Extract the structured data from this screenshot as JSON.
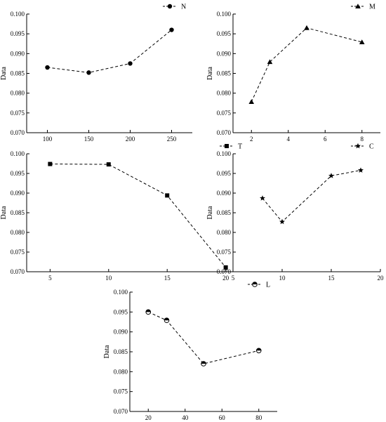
{
  "chart_data": [
    {
      "type": "line",
      "ylabel": "Data",
      "x": [
        100,
        150,
        200,
        250
      ],
      "series": [
        {
          "name": "N",
          "marker": "circle",
          "values": [
            0.0865,
            0.0852,
            0.0875,
            0.096
          ]
        }
      ],
      "xlim": [
        75,
        275
      ],
      "xticks": [
        100,
        150,
        200,
        250
      ],
      "ylim": [
        0.07,
        0.1
      ],
      "yticks": [
        0.07,
        0.075,
        0.08,
        0.085,
        0.09,
        0.095,
        0.1
      ],
      "grid": false,
      "legend_position": "top-right"
    },
    {
      "type": "line",
      "ylabel": "Data",
      "x": [
        2,
        3,
        5,
        8
      ],
      "series": [
        {
          "name": "M",
          "marker": "triangle",
          "values": [
            0.0778,
            0.0879,
            0.0965,
            0.0929
          ]
        }
      ],
      "xlim": [
        1,
        9
      ],
      "xticks": [
        2,
        4,
        6,
        8
      ],
      "ylim": [
        0.07,
        0.1
      ],
      "yticks": [
        0.07,
        0.075,
        0.08,
        0.085,
        0.09,
        0.095,
        0.1
      ],
      "grid": false,
      "legend_position": "top-right"
    },
    {
      "type": "line",
      "ylabel": "Data",
      "x": [
        5,
        10,
        15,
        20
      ],
      "series": [
        {
          "name": "T",
          "marker": "square",
          "values": [
            0.0974,
            0.0973,
            0.0894,
            0.0711
          ]
        }
      ],
      "xlim": [
        3,
        22
      ],
      "xticks": [
        5,
        10,
        15,
        20
      ],
      "ylim": [
        0.07,
        0.1
      ],
      "yticks": [
        0.07,
        0.075,
        0.08,
        0.085,
        0.09,
        0.095,
        0.1
      ],
      "grid": false,
      "legend_position": "top-right"
    },
    {
      "type": "line",
      "ylabel": "Data",
      "x": [
        8,
        10,
        15,
        18
      ],
      "series": [
        {
          "name": "C",
          "marker": "star",
          "values": [
            0.0887,
            0.0827,
            0.0944,
            0.0958
          ]
        }
      ],
      "xlim": [
        5,
        20
      ],
      "xticks": [
        5,
        10,
        15,
        20
      ],
      "ylim": [
        0.07,
        0.1
      ],
      "yticks": [
        0.07,
        0.075,
        0.08,
        0.085,
        0.09,
        0.095,
        0.1
      ],
      "grid": false,
      "legend_position": "top-right"
    },
    {
      "type": "line",
      "ylabel": "Data",
      "x": [
        20,
        30,
        50,
        80
      ],
      "series": [
        {
          "name": "L",
          "marker": "half-circle",
          "values": [
            0.095,
            0.0929,
            0.082,
            0.0853
          ]
        }
      ],
      "xlim": [
        10,
        90
      ],
      "xticks": [
        20,
        40,
        60,
        80
      ],
      "ylim": [
        0.07,
        0.1
      ],
      "yticks": [
        0.07,
        0.075,
        0.08,
        0.085,
        0.09,
        0.095,
        0.1
      ],
      "grid": false,
      "legend_position": "top-right"
    }
  ]
}
